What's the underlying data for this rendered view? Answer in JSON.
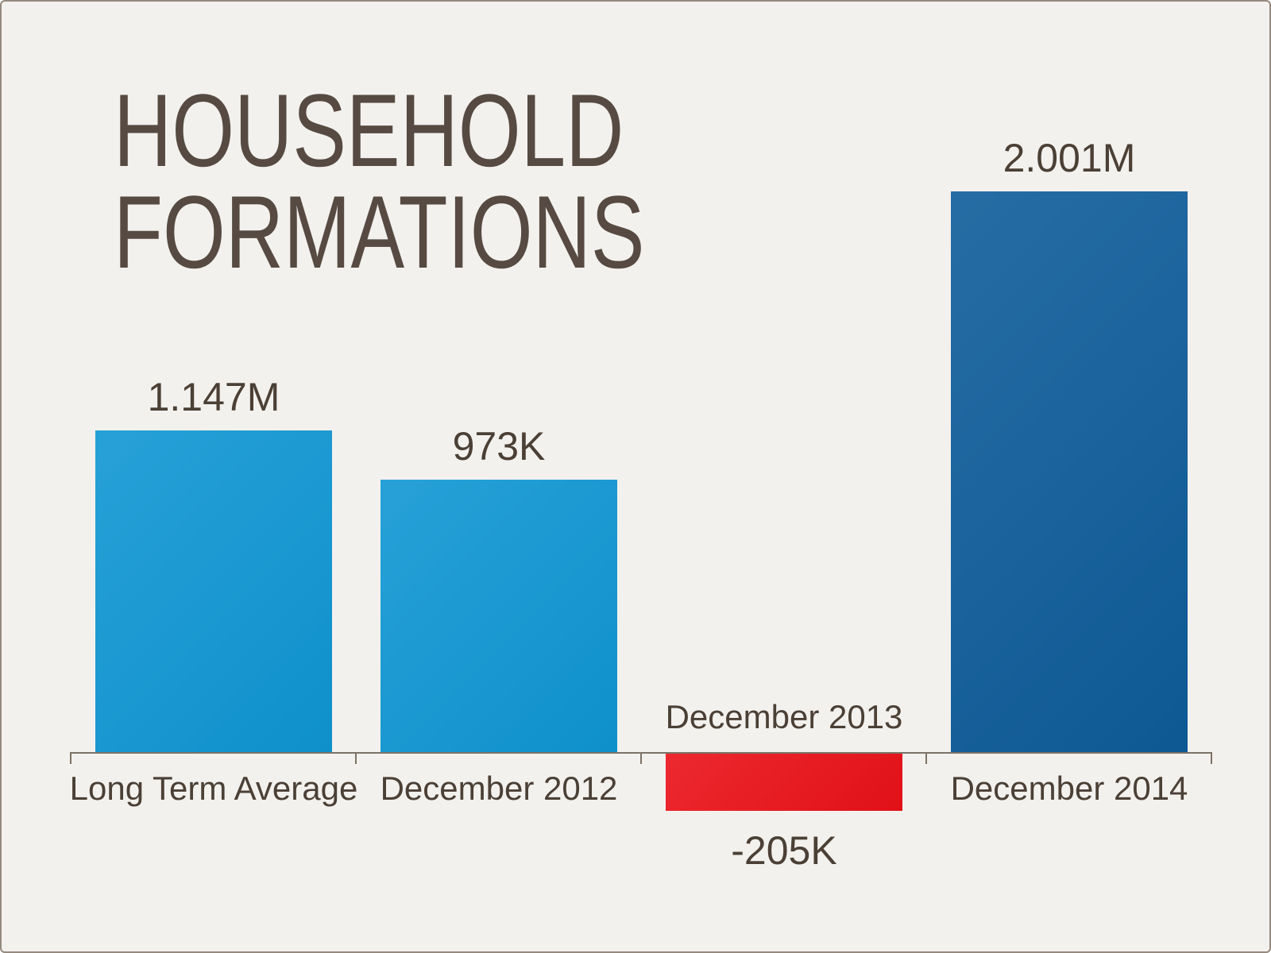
{
  "window": {
    "background_color": "#f3f1ee",
    "frame_border_color": "#95897e"
  },
  "chart_data": {
    "type": "bar",
    "title": "HOUSEHOLD FORMATIONS",
    "title_lines": [
      "HOUSEHOLD",
      "FORMATIONS"
    ],
    "categories": [
      "Long Term Average",
      "December 2012",
      "December 2013",
      "December 2014"
    ],
    "values": [
      1147000,
      973000,
      -205000,
      2001000
    ],
    "value_labels": [
      "1.147M",
      "973K",
      "-205K",
      "2.001M"
    ],
    "bars": [
      {
        "category": "Long Term Average",
        "value": 1147000,
        "value_millions": 1.147,
        "value_label": "1.147M",
        "color": "#0f96d3",
        "value_label_position": "above-bar",
        "category_label_position": "below-axis"
      },
      {
        "category": "December 2012",
        "value": 973000,
        "value_millions": 0.973,
        "value_label": "973K",
        "color": "#0f96d3",
        "value_label_position": "above-bar",
        "category_label_position": "below-axis"
      },
      {
        "category": "December 2013",
        "value": -205000,
        "value_millions": -0.205,
        "value_label": "-205K",
        "color": "#ea1118",
        "value_label_position": "below-bar",
        "category_label_position": "above-axis"
      },
      {
        "category": "December 2014",
        "value": 2001000,
        "value_millions": 2.001,
        "value_label": "2.001M",
        "color": "#0e5c9a",
        "value_label_position": "above-bar",
        "category_label_position": "below-axis"
      }
    ],
    "xlabel": "",
    "ylabel": "",
    "ylim": [
      -300000,
      2200000
    ],
    "grid": false,
    "legend": false,
    "axis_line_color": "#7b7267",
    "tick_marks": "category-boundaries",
    "title_color": "#564a42",
    "label_text_color": "#4b4036"
  }
}
